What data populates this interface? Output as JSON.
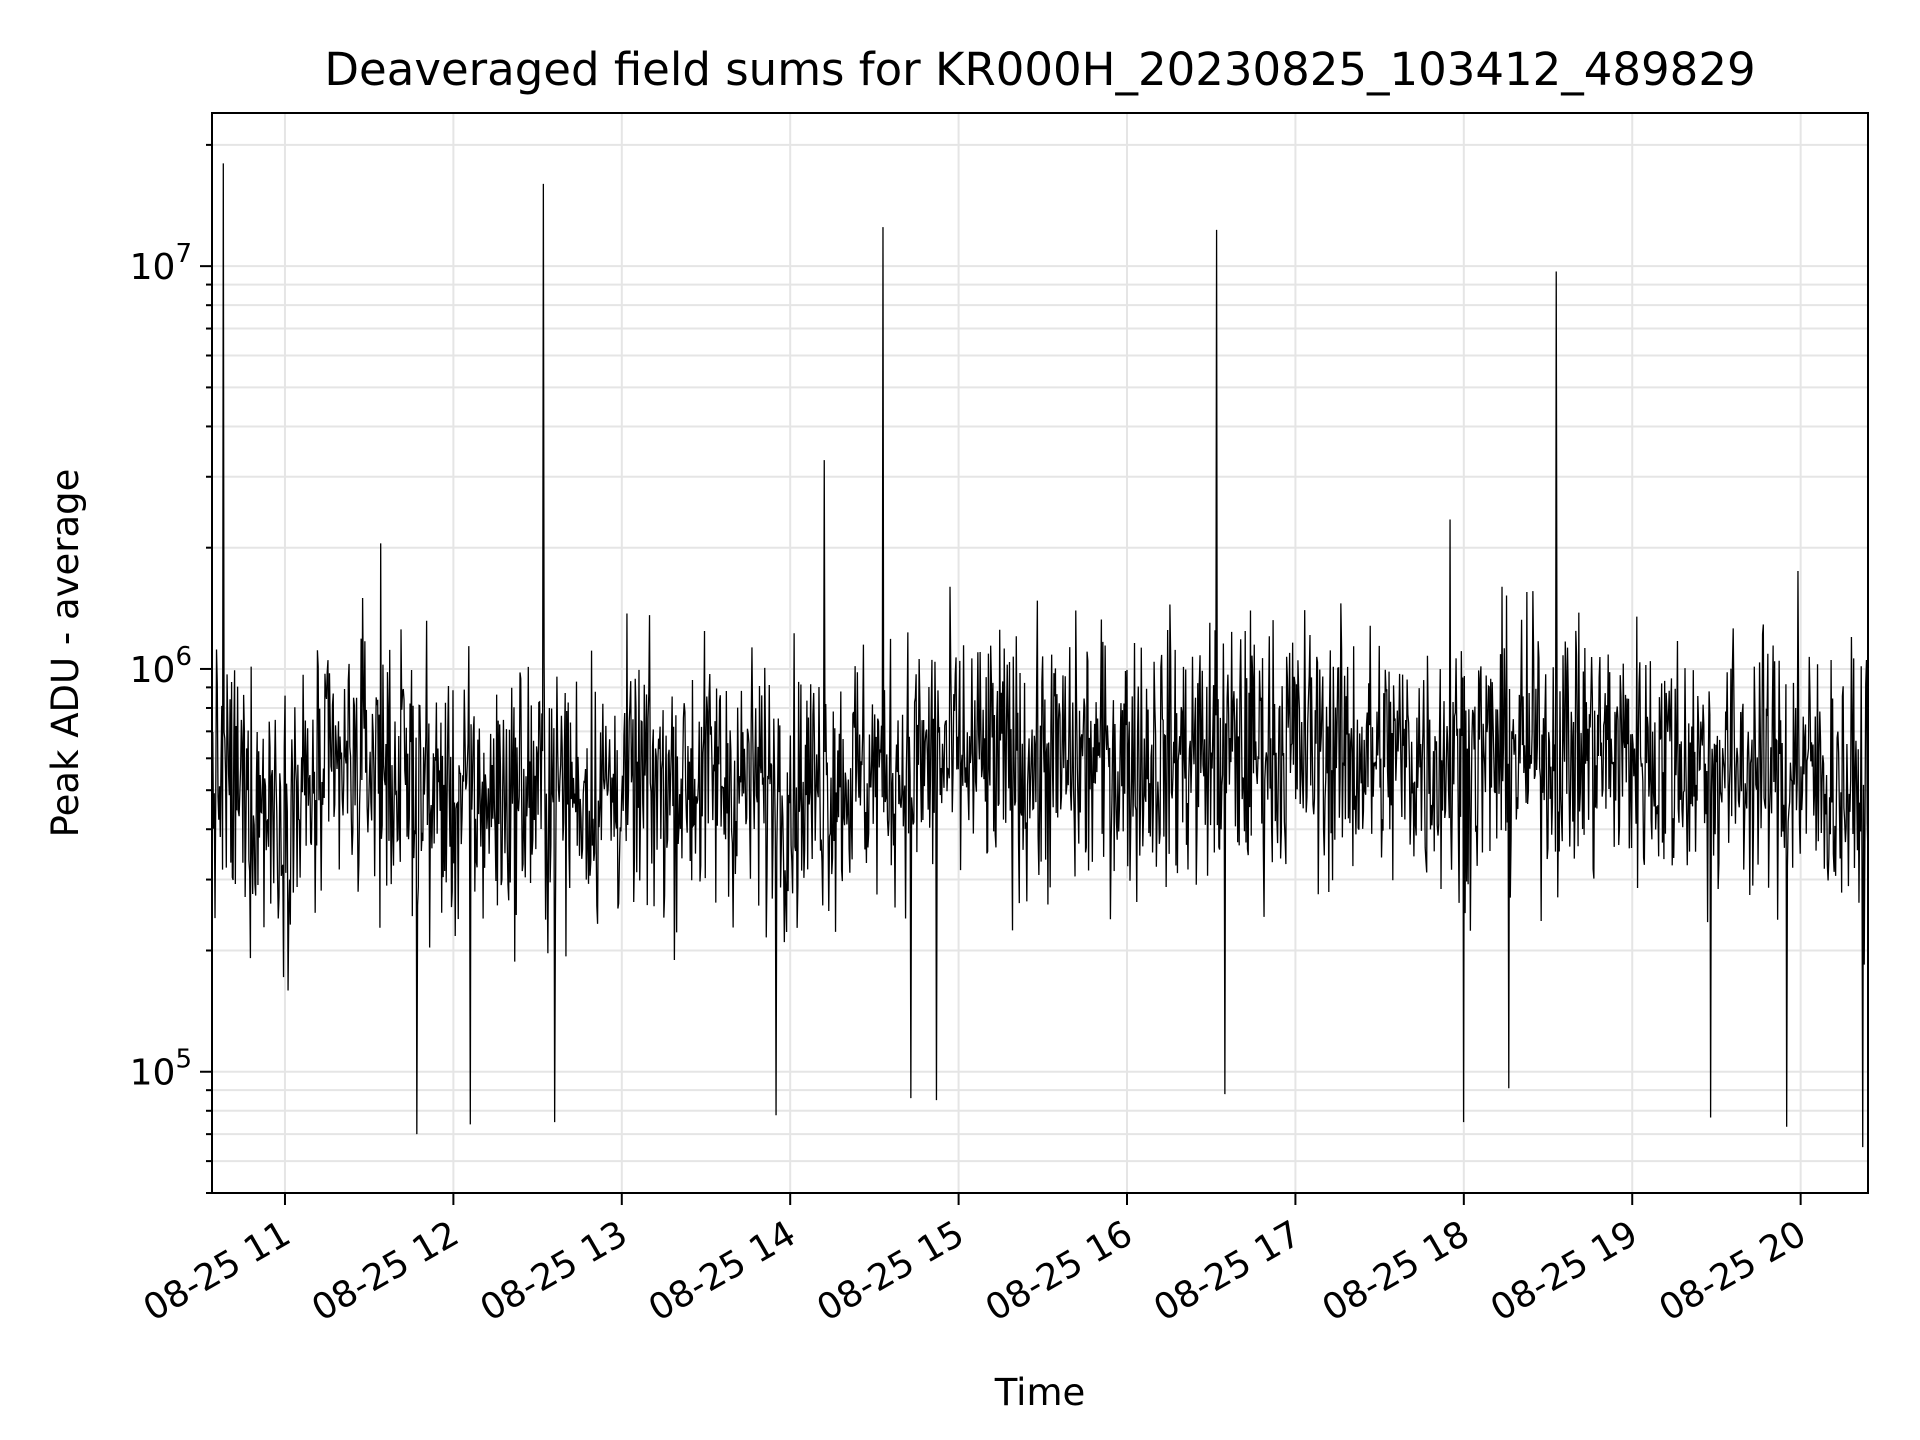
{
  "chart_data": {
    "type": "line",
    "title": "Deaveraged field sums for KR000H_20230825_103412_489829",
    "xlabel": "Time",
    "ylabel": "Peak ADU - average",
    "yscale": "log",
    "ylim": [
      50000,
      24000000
    ],
    "xlim": [
      "2023-08-25 10:34",
      "2023-08-25 20:24"
    ],
    "grid": true,
    "line_color": "#000000",
    "x_tick_labels": [
      "08-25 11",
      "08-25 12",
      "08-25 13",
      "08-25 14",
      "08-25 15",
      "08-25 16",
      "08-25 17",
      "08-25 18",
      "08-25 19",
      "08-25 20"
    ],
    "x_ticks": [
      "2023-08-25 11:00",
      "2023-08-25 12:00",
      "2023-08-25 13:00",
      "2023-08-25 14:00",
      "2023-08-25 15:00",
      "2023-08-25 16:00",
      "2023-08-25 17:00",
      "2023-08-25 18:00",
      "2023-08-25 19:00",
      "2023-08-25 20:00"
    ],
    "y_ticks": [
      {
        "value": 100000,
        "base": "10",
        "exp": "5"
      },
      {
        "value": 1000000,
        "base": "10",
        "exp": "6"
      },
      {
        "value": 10000000,
        "base": "10",
        "exp": "7"
      }
    ],
    "baseline_profile": {
      "x": [
        "2023-08-25 10:34",
        "2023-08-25 11:00",
        "2023-08-25 11:30",
        "2023-08-25 12:00",
        "2023-08-25 12:30",
        "2023-08-25 13:00",
        "2023-08-25 13:30",
        "2023-08-25 14:00",
        "2023-08-25 14:30",
        "2023-08-25 15:00",
        "2023-08-25 15:30",
        "2023-08-25 16:00",
        "2023-08-25 16:30",
        "2023-08-25 17:00",
        "2023-08-25 17:30",
        "2023-08-25 18:00",
        "2023-08-25 18:30",
        "2023-08-25 19:00",
        "2023-08-25 19:30",
        "2023-08-25 20:00",
        "2023-08-25 20:24"
      ],
      "y": [
        520000,
        450000,
        600000,
        460000,
        500000,
        500000,
        540000,
        500000,
        560000,
        600000,
        580000,
        600000,
        620000,
        650000,
        600000,
        600000,
        640000,
        620000,
        580000,
        560000,
        480000
      ]
    },
    "spikes": [
      {
        "x": "2023-08-25 10:38",
        "y": 18000000
      },
      {
        "x": "2023-08-25 11:34",
        "y": 2050000
      },
      {
        "x": "2023-08-25 12:32",
        "y": 16000000
      },
      {
        "x": "2023-08-25 14:12",
        "y": 3300000
      },
      {
        "x": "2023-08-25 14:33",
        "y": 12500000
      },
      {
        "x": "2023-08-25 16:32",
        "y": 12300000
      },
      {
        "x": "2023-08-25 17:55",
        "y": 2350000
      },
      {
        "x": "2023-08-25 18:33",
        "y": 9700000
      },
      {
        "x": "2023-08-25 19:59",
        "y": 1750000
      }
    ],
    "dips": [
      {
        "x": "2023-08-25 11:47",
        "y": 70000
      },
      {
        "x": "2023-08-25 12:06",
        "y": 74000
      },
      {
        "x": "2023-08-25 12:36",
        "y": 75000
      },
      {
        "x": "2023-08-25 13:55",
        "y": 78000
      },
      {
        "x": "2023-08-25 14:43",
        "y": 86000
      },
      {
        "x": "2023-08-25 14:52",
        "y": 85000
      },
      {
        "x": "2023-08-25 16:35",
        "y": 88000
      },
      {
        "x": "2023-08-25 18:00",
        "y": 75000
      },
      {
        "x": "2023-08-25 18:16",
        "y": 91000
      },
      {
        "x": "2023-08-25 19:28",
        "y": 77000
      },
      {
        "x": "2023-08-25 19:55",
        "y": 73000
      },
      {
        "x": "2023-08-25 20:22",
        "y": 65000
      }
    ]
  }
}
